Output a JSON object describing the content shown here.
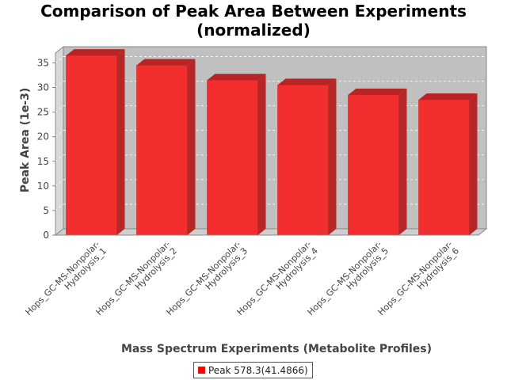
{
  "chart_data": {
    "type": "bar",
    "title_line1": "Comparison of Peak Area Between Experiments",
    "title_line2": "(normalized)",
    "xlabel": "Mass Spectrum Experiments (Metabolite Profiles)",
    "ylabel": "Peak Area (1e-3)",
    "categories": [
      "Hops_GC-MS-Nonpolar-Hydrolysis_1",
      "Hops_GC-MS-Nonpolar-Hydrolysis_2",
      "Hops_GC-MS-Nonpolar-Hydrolysis_3",
      "Hops_GC-MS-Nonpolar-Hydrolysis_4",
      "Hops_GC-MS-Nonpolar-Hydrolysis_5",
      "Hops_GC-MS-Nonpolar-Hydrolysis_6"
    ],
    "category_label_lines": [
      [
        "Hops_GC-MS-Nonpolar-",
        "Hydrolysis_1"
      ],
      [
        "Hops_GC-MS-Nonpolar-",
        "Hydrolysis_2"
      ],
      [
        "Hops_GC-MS-Nonpolar-",
        "Hydrolysis_3"
      ],
      [
        "Hops_GC-MS-Nonpolar-",
        "Hydrolysis_4"
      ],
      [
        "Hops_GC-MS-Nonpolar-",
        "Hydrolysis_5"
      ],
      [
        "Hops_GC-MS-Nonpolar-",
        "Hydrolysis_6"
      ]
    ],
    "series": [
      {
        "name": "Peak 578.3(41.4866)",
        "values": [
          36.5,
          34.5,
          31.5,
          30.5,
          28.5,
          27.5
        ]
      }
    ],
    "ylim": [
      0,
      37
    ],
    "yticks": [
      0,
      5,
      10,
      15,
      20,
      25,
      30,
      35
    ],
    "grid": true,
    "legend_position": "bottom",
    "colors": {
      "bar": "#ff0000",
      "plot_background": "#c0c0c0"
    }
  }
}
